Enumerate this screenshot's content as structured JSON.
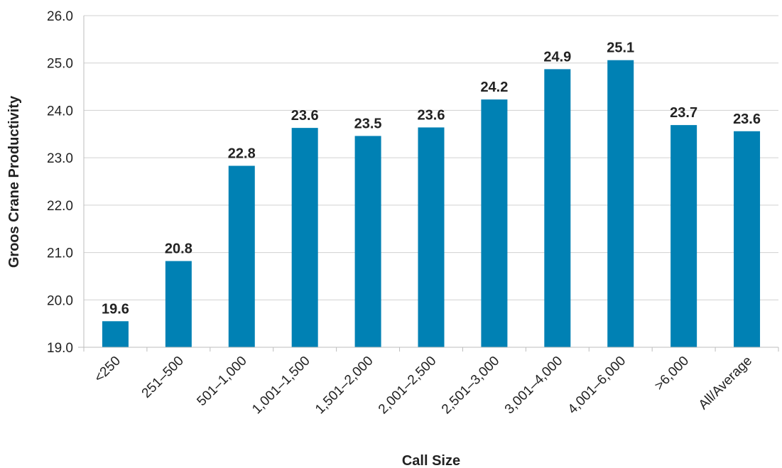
{
  "chart_data": {
    "type": "bar",
    "title": "",
    "xlabel": "Call Size",
    "ylabel": "Groos Crane Productivity",
    "categories": [
      "<250",
      "251–500",
      "501–1,000",
      "1,001–1,500",
      "1,501–2,000",
      "2,001–2,500",
      "2,501–3,000",
      "3,001–4,000",
      "4,001–6,000",
      ">6,000",
      "All/Average"
    ],
    "values": [
      19.55,
      20.82,
      22.83,
      23.63,
      23.46,
      23.64,
      24.23,
      24.87,
      25.06,
      23.69,
      23.56
    ],
    "data_labels": [
      "19.6",
      "20.8",
      "22.8",
      "23.6",
      "23.5",
      "23.6",
      "24.2",
      "24.9",
      "25.1",
      "23.7",
      "23.6"
    ],
    "yticks": [
      "19.0",
      "20.0",
      "21.0",
      "22.0",
      "23.0",
      "24.0",
      "25.0",
      "26.0"
    ],
    "ylim": [
      19,
      26
    ],
    "grid": true,
    "legend": "none",
    "bar_color": "#0081B4"
  }
}
